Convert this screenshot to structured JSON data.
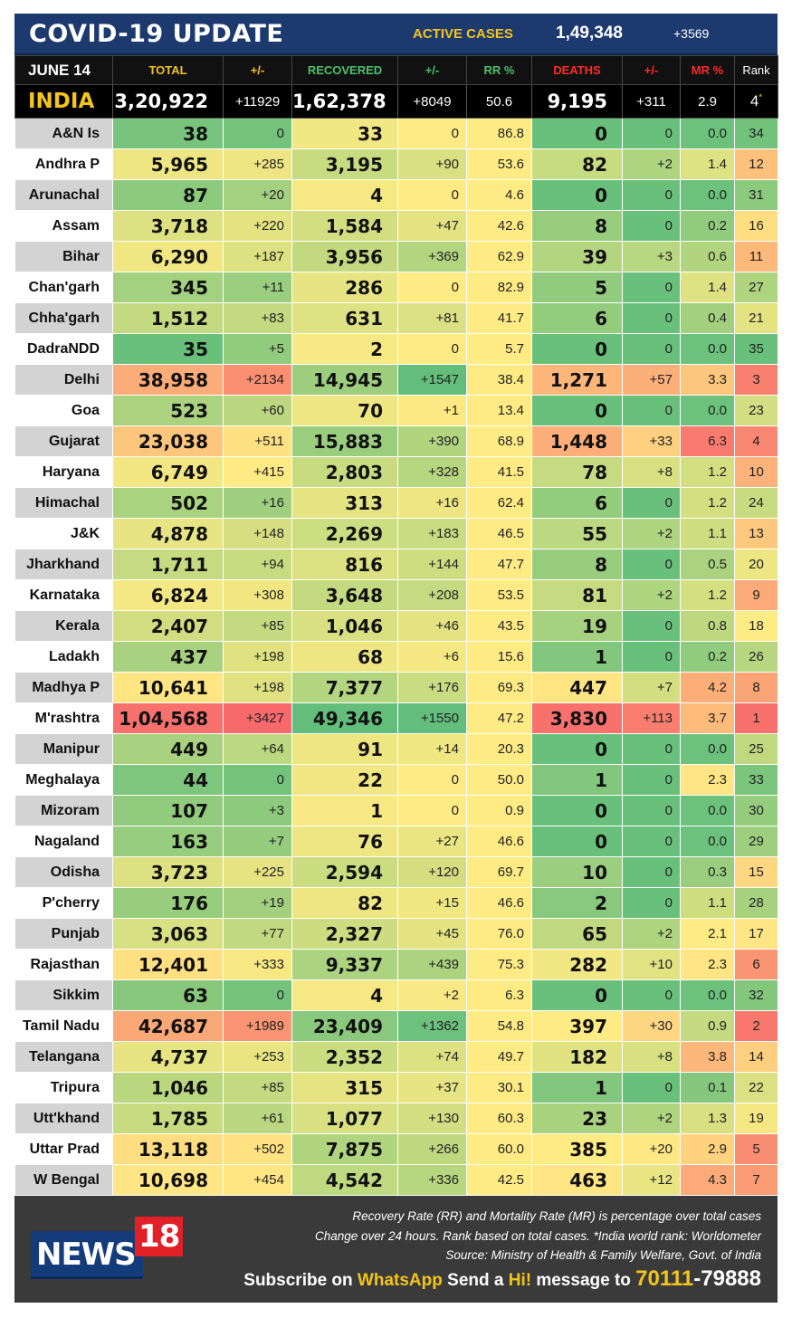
{
  "header": {
    "title": "COVID-19 UPDATE",
    "active_label": "ACTIVE CASES",
    "active_value": "1,49,348",
    "active_change": "+3569"
  },
  "columns": {
    "date": "JUNE 14",
    "total": "TOTAL",
    "total_change": "+/-",
    "recovered": "RECOVERED",
    "recovered_change": "+/-",
    "rr": "RR %",
    "deaths": "DEATHS",
    "deaths_change": "+/-",
    "mr": "MR %",
    "rank": "Rank"
  },
  "india": {
    "name": "INDIA",
    "total": "3,20,922",
    "total_change": "+11929",
    "recovered": "1,62,378",
    "recovered_change": "+8049",
    "rr": "50.6",
    "deaths": "9,195",
    "deaths_change": "+311",
    "mr": "2.9",
    "rank": "4",
    "rank_mark": "*"
  },
  "colors": {
    "header_navy": "#1d3a6e",
    "yellow_text": "#f3c51c",
    "green_text": "#49c26b",
    "red_text": "#ff2a2a",
    "heat_green": "#63be7b",
    "heat_yellow": "#ffeb84",
    "heat_red": "#f8696b"
  },
  "states": [
    {
      "name": "A&N Is",
      "total": "38",
      "tc": "0",
      "rec": "33",
      "rc": "0",
      "rr": "86.8",
      "deaths": "0",
      "dc": "0",
      "mr": "0.0",
      "rank": "34"
    },
    {
      "name": "Andhra P",
      "total": "5,965",
      "tc": "+285",
      "rec": "3,195",
      "rc": "+90",
      "rr": "53.6",
      "deaths": "82",
      "dc": "+2",
      "mr": "1.4",
      "rank": "12"
    },
    {
      "name": "Arunachal",
      "total": "87",
      "tc": "+20",
      "rec": "4",
      "rc": "0",
      "rr": "4.6",
      "deaths": "0",
      "dc": "0",
      "mr": "0.0",
      "rank": "31"
    },
    {
      "name": "Assam",
      "total": "3,718",
      "tc": "+220",
      "rec": "1,584",
      "rc": "+47",
      "rr": "42.6",
      "deaths": "8",
      "dc": "0",
      "mr": "0.2",
      "rank": "16"
    },
    {
      "name": "Bihar",
      "total": "6,290",
      "tc": "+187",
      "rec": "3,956",
      "rc": "+369",
      "rr": "62.9",
      "deaths": "39",
      "dc": "+3",
      "mr": "0.6",
      "rank": "11"
    },
    {
      "name": "Chan'garh",
      "total": "345",
      "tc": "+11",
      "rec": "286",
      "rc": "0",
      "rr": "82.9",
      "deaths": "5",
      "dc": "0",
      "mr": "1.4",
      "rank": "27"
    },
    {
      "name": "Chha'garh",
      "total": "1,512",
      "tc": "+83",
      "rec": "631",
      "rc": "+81",
      "rr": "41.7",
      "deaths": "6",
      "dc": "0",
      "mr": "0.4",
      "rank": "21"
    },
    {
      "name": "DadraNDD",
      "total": "35",
      "tc": "+5",
      "rec": "2",
      "rc": "0",
      "rr": "5.7",
      "deaths": "0",
      "dc": "0",
      "mr": "0.0",
      "rank": "35"
    },
    {
      "name": "Delhi",
      "total": "38,958",
      "tc": "+2134",
      "rec": "14,945",
      "rc": "+1547",
      "rr": "38.4",
      "deaths": "1,271",
      "dc": "+57",
      "mr": "3.3",
      "rank": "3"
    },
    {
      "name": "Goa",
      "total": "523",
      "tc": "+60",
      "rec": "70",
      "rc": "+1",
      "rr": "13.4",
      "deaths": "0",
      "dc": "0",
      "mr": "0.0",
      "rank": "23"
    },
    {
      "name": "Gujarat",
      "total": "23,038",
      "tc": "+511",
      "rec": "15,883",
      "rc": "+390",
      "rr": "68.9",
      "deaths": "1,448",
      "dc": "+33",
      "mr": "6.3",
      "rank": "4"
    },
    {
      "name": "Haryana",
      "total": "6,749",
      "tc": "+415",
      "rec": "2,803",
      "rc": "+328",
      "rr": "41.5",
      "deaths": "78",
      "dc": "+8",
      "mr": "1.2",
      "rank": "10"
    },
    {
      "name": "Himachal",
      "total": "502",
      "tc": "+16",
      "rec": "313",
      "rc": "+16",
      "rr": "62.4",
      "deaths": "6",
      "dc": "0",
      "mr": "1.2",
      "rank": "24"
    },
    {
      "name": "J&K",
      "total": "4,878",
      "tc": "+148",
      "rec": "2,269",
      "rc": "+183",
      "rr": "46.5",
      "deaths": "55",
      "dc": "+2",
      "mr": "1.1",
      "rank": "13"
    },
    {
      "name": "Jharkhand",
      "total": "1,711",
      "tc": "+94",
      "rec": "816",
      "rc": "+144",
      "rr": "47.7",
      "deaths": "8",
      "dc": "0",
      "mr": "0.5",
      "rank": "20"
    },
    {
      "name": "Karnataka",
      "total": "6,824",
      "tc": "+308",
      "rec": "3,648",
      "rc": "+208",
      "rr": "53.5",
      "deaths": "81",
      "dc": "+2",
      "mr": "1.2",
      "rank": "9"
    },
    {
      "name": "Kerala",
      "total": "2,407",
      "tc": "+85",
      "rec": "1,046",
      "rc": "+46",
      "rr": "43.5",
      "deaths": "19",
      "dc": "0",
      "mr": "0.8",
      "rank": "18"
    },
    {
      "name": "Ladakh",
      "total": "437",
      "tc": "+198",
      "rec": "68",
      "rc": "+6",
      "rr": "15.6",
      "deaths": "1",
      "dc": "0",
      "mr": "0.2",
      "rank": "26"
    },
    {
      "name": "Madhya P",
      "total": "10,641",
      "tc": "+198",
      "rec": "7,377",
      "rc": "+176",
      "rr": "69.3",
      "deaths": "447",
      "dc": "+7",
      "mr": "4.2",
      "rank": "8"
    },
    {
      "name": "M'rashtra",
      "total": "1,04,568",
      "tc": "+3427",
      "rec": "49,346",
      "rc": "+1550",
      "rr": "47.2",
      "deaths": "3,830",
      "dc": "+113",
      "mr": "3.7",
      "rank": "1"
    },
    {
      "name": "Manipur",
      "total": "449",
      "tc": "+64",
      "rec": "91",
      "rc": "+14",
      "rr": "20.3",
      "deaths": "0",
      "dc": "0",
      "mr": "0.0",
      "rank": "25"
    },
    {
      "name": "Meghalaya",
      "total": "44",
      "tc": "0",
      "rec": "22",
      "rc": "0",
      "rr": "50.0",
      "deaths": "1",
      "dc": "0",
      "mr": "2.3",
      "rank": "33"
    },
    {
      "name": "Mizoram",
      "total": "107",
      "tc": "+3",
      "rec": "1",
      "rc": "0",
      "rr": "0.9",
      "deaths": "0",
      "dc": "0",
      "mr": "0.0",
      "rank": "30"
    },
    {
      "name": "Nagaland",
      "total": "163",
      "tc": "+7",
      "rec": "76",
      "rc": "+27",
      "rr": "46.6",
      "deaths": "0",
      "dc": "0",
      "mr": "0.0",
      "rank": "29"
    },
    {
      "name": "Odisha",
      "total": "3,723",
      "tc": "+225",
      "rec": "2,594",
      "rc": "+120",
      "rr": "69.7",
      "deaths": "10",
      "dc": "0",
      "mr": "0.3",
      "rank": "15"
    },
    {
      "name": "P'cherry",
      "total": "176",
      "tc": "+19",
      "rec": "82",
      "rc": "+15",
      "rr": "46.6",
      "deaths": "2",
      "dc": "0",
      "mr": "1.1",
      "rank": "28"
    },
    {
      "name": "Punjab",
      "total": "3,063",
      "tc": "+77",
      "rec": "2,327",
      "rc": "+45",
      "rr": "76.0",
      "deaths": "65",
      "dc": "+2",
      "mr": "2.1",
      "rank": "17"
    },
    {
      "name": "Rajasthan",
      "total": "12,401",
      "tc": "+333",
      "rec": "9,337",
      "rc": "+439",
      "rr": "75.3",
      "deaths": "282",
      "dc": "+10",
      "mr": "2.3",
      "rank": "6"
    },
    {
      "name": "Sikkim",
      "total": "63",
      "tc": "0",
      "rec": "4",
      "rc": "+2",
      "rr": "6.3",
      "deaths": "0",
      "dc": "0",
      "mr": "0.0",
      "rank": "32"
    },
    {
      "name": "Tamil Nadu",
      "total": "42,687",
      "tc": "+1989",
      "rec": "23,409",
      "rc": "+1362",
      "rr": "54.8",
      "deaths": "397",
      "dc": "+30",
      "mr": "0.9",
      "rank": "2"
    },
    {
      "name": "Telangana",
      "total": "4,737",
      "tc": "+253",
      "rec": "2,352",
      "rc": "+74",
      "rr": "49.7",
      "deaths": "182",
      "dc": "+8",
      "mr": "3.8",
      "rank": "14"
    },
    {
      "name": "Tripura",
      "total": "1,046",
      "tc": "+85",
      "rec": "315",
      "rc": "+37",
      "rr": "30.1",
      "deaths": "1",
      "dc": "0",
      "mr": "0.1",
      "rank": "22"
    },
    {
      "name": "Utt'khand",
      "total": "1,785",
      "tc": "+61",
      "rec": "1,077",
      "rc": "+130",
      "rr": "60.3",
      "deaths": "23",
      "dc": "+2",
      "mr": "1.3",
      "rank": "19"
    },
    {
      "name": "Uttar Prad",
      "total": "13,118",
      "tc": "+502",
      "rec": "7,875",
      "rc": "+266",
      "rr": "60.0",
      "deaths": "385",
      "dc": "+20",
      "mr": "2.9",
      "rank": "5"
    },
    {
      "name": "W Bengal",
      "total": "10,698",
      "tc": "+454",
      "rec": "4,542",
      "rc": "+336",
      "rr": "42.5",
      "deaths": "463",
      "dc": "+12",
      "mr": "4.3",
      "rank": "7"
    }
  ],
  "footer": {
    "note1": "Recovery Rate (RR) and Mortality Rate (MR) is percentage over total cases",
    "note2": "Change over 24 hours. Rank based on total cases. *India world rank: Worldometer",
    "note3": "Source: Ministry of Health & Family Welfare, Govt. of India",
    "logo_word": "NEWS",
    "logo_num": "18",
    "sub_pre": "Subscribe on",
    "sub_app": "WhatsApp",
    "sub_mid": "Send a",
    "sub_hi": "Hi!",
    "sub_post": "message to",
    "sub_num_a": "70111",
    "sub_num_b": "-79888"
  }
}
